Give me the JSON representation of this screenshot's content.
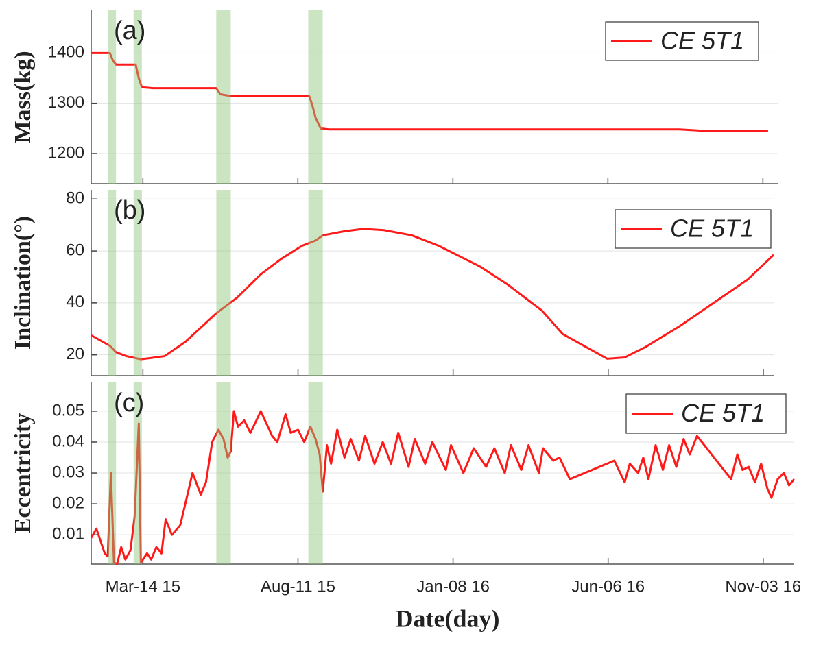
{
  "chart_data": [
    {
      "type": "line",
      "annotation": "(a)",
      "ylabel": "Mass(kg)",
      "legend": "upper right",
      "grid": true,
      "xlim": [
        "2015-01-23",
        "2016-11-18"
      ],
      "xticks": [
        "2015-03-14",
        "2015-08-11",
        "2016-01-08",
        "2016-06-06",
        "2016-11-03"
      ],
      "ylim": [
        1140,
        1485
      ],
      "yticks": [
        1200,
        1300,
        1400
      ],
      "highlights": [
        [
          "2015-02-08",
          "2015-02-16"
        ],
        [
          "2015-03-05",
          "2015-03-13"
        ],
        [
          "2015-05-24",
          "2015-06-07"
        ],
        [
          "2015-08-21",
          "2015-09-04"
        ]
      ],
      "highlight_color": "#8cc57a",
      "x": [
        "2015-01-23",
        "2015-02-10",
        "2015-02-13",
        "2015-02-16",
        "2015-03-07",
        "2015-03-10",
        "2015-03-13",
        "2015-03-24",
        "2015-05-24",
        "2015-05-28",
        "2015-06-08",
        "2015-08-22",
        "2015-08-25",
        "2015-08-28",
        "2015-09-02",
        "2015-09-10",
        "2016-08-14",
        "2016-09-09",
        "2016-11-08"
      ],
      "series": [
        {
          "name": "CE 5T1",
          "color": "#ff1a1a",
          "values": [
            1400,
            1400,
            1385,
            1377,
            1377,
            1350,
            1332,
            1330,
            1330,
            1318,
            1314,
            1314,
            1296,
            1272,
            1250,
            1248,
            1248,
            1245,
            1245
          ]
        }
      ]
    },
    {
      "type": "line",
      "annotation": "(b)",
      "ylabel": "Inclination(°)",
      "legend": "upper right",
      "grid": true,
      "xlim": [
        "2015-01-23",
        "2016-11-13"
      ],
      "xticks": [
        "2015-03-14",
        "2015-08-11",
        "2016-01-08",
        "2016-06-06",
        "2016-11-03"
      ],
      "ylim": [
        12,
        83.5
      ],
      "yticks": [
        20,
        40,
        60,
        80
      ],
      "highlights": [
        [
          "2015-02-08",
          "2015-02-16"
        ],
        [
          "2015-03-05",
          "2015-03-13"
        ],
        [
          "2015-05-24",
          "2015-06-07"
        ],
        [
          "2015-08-21",
          "2015-09-04"
        ]
      ],
      "highlight_color": "#8cc57a",
      "x": [
        "2015-01-23",
        "2015-02-10",
        "2015-02-16",
        "2015-02-26",
        "2015-03-12",
        "2015-03-22",
        "2015-04-04",
        "2015-04-24",
        "2015-05-24",
        "2015-06-13",
        "2015-07-06",
        "2015-07-26",
        "2015-08-15",
        "2015-08-28",
        "2015-09-04",
        "2015-09-24",
        "2015-10-13",
        "2015-11-02",
        "2015-11-29",
        "2015-12-25",
        "2016-02-03",
        "2016-03-01",
        "2016-04-03",
        "2016-04-23",
        "2016-06-05",
        "2016-06-22",
        "2016-07-12",
        "2016-08-14",
        "2016-09-16",
        "2016-10-19",
        "2016-11-13"
      ],
      "series": [
        {
          "name": "CE 5T1",
          "color": "#ff1a1a",
          "values": [
            27.5,
            23.5,
            21,
            19.5,
            18.3,
            18.8,
            19.5,
            25,
            36,
            42,
            51,
            57,
            62,
            64,
            66,
            67.5,
            68.5,
            68,
            66,
            62,
            54,
            47,
            37,
            28,
            18.5,
            19,
            23,
            31,
            40,
            49,
            58.5
          ]
        }
      ]
    },
    {
      "type": "line",
      "annotation": "(c)",
      "ylabel": "Eccentricity",
      "xlabel": "Date(day)",
      "legend": "upper right",
      "grid": true,
      "xlim": [
        "2015-01-23",
        "2016-12-03"
      ],
      "xticks": [
        {
          "value": "2015-03-14",
          "label": "Mar-14 15"
        },
        {
          "value": "2015-08-11",
          "label": "Aug-11 15"
        },
        {
          "value": "2016-01-08",
          "label": "Jan-08 16"
        },
        {
          "value": "2016-06-06",
          "label": "Jun-06 16"
        },
        {
          "value": "2016-11-03",
          "label": "Nov-03 16"
        }
      ],
      "ylim": [
        0.0005,
        0.0593
      ],
      "yticks": [
        0.01,
        0.02,
        0.03,
        0.04,
        0.05
      ],
      "highlights": [
        [
          "2015-02-08",
          "2015-02-16"
        ],
        [
          "2015-03-05",
          "2015-03-13"
        ],
        [
          "2015-05-24",
          "2015-06-07"
        ],
        [
          "2015-08-21",
          "2015-09-04"
        ]
      ],
      "highlight_color": "#8cc57a",
      "x": [
        "2015-01-23",
        "2015-01-28",
        "2015-02-01",
        "2015-02-05",
        "2015-02-08",
        "2015-02-11",
        "2015-02-14",
        "2015-02-17",
        "2015-02-21",
        "2015-02-25",
        "2015-03-02",
        "2015-03-06",
        "2015-03-10",
        "2015-03-12",
        "2015-03-18",
        "2015-03-22",
        "2015-03-27",
        "2015-04-01",
        "2015-04-05",
        "2015-04-11",
        "2015-04-19",
        "2015-04-24",
        "2015-05-01",
        "2015-05-09",
        "2015-05-14",
        "2015-05-20",
        "2015-05-26",
        "2015-05-31",
        "2015-06-04",
        "2015-06-07",
        "2015-06-10",
        "2015-06-14",
        "2015-06-20",
        "2015-06-26",
        "2015-07-06",
        "2015-07-17",
        "2015-07-22",
        "2015-07-30",
        "2015-08-04",
        "2015-08-11",
        "2015-08-17",
        "2015-08-23",
        "2015-08-28",
        "2015-09-01",
        "2015-09-04",
        "2015-09-08",
        "2015-09-12",
        "2015-09-18",
        "2015-09-25",
        "2015-10-01",
        "2015-10-09",
        "2015-10-15",
        "2015-10-24",
        "2015-11-01",
        "2015-11-09",
        "2015-11-16",
        "2015-11-26",
        "2015-12-02",
        "2015-12-12",
        "2015-12-19",
        "2016-01-01",
        "2016-01-06",
        "2016-01-18",
        "2016-01-28",
        "2016-02-09",
        "2016-02-17",
        "2016-02-27",
        "2016-03-04",
        "2016-03-14",
        "2016-03-21",
        "2016-03-31",
        "2016-04-04",
        "2016-04-14",
        "2016-04-20",
        "2016-04-30",
        "2016-06-12",
        "2016-06-22",
        "2016-06-27",
        "2016-07-05",
        "2016-07-10",
        "2016-07-15",
        "2016-07-22",
        "2016-07-29",
        "2016-08-04",
        "2016-08-11",
        "2016-08-18",
        "2016-08-24",
        "2016-08-31",
        "2016-10-03",
        "2016-10-09",
        "2016-10-14",
        "2016-10-20",
        "2016-10-26",
        "2016-11-01",
        "2016-11-07",
        "2016-11-11",
        "2016-11-17",
        "2016-11-23",
        "2016-11-28",
        "2016-12-03"
      ],
      "series": [
        {
          "name": "CE 5T1",
          "color": "#ff1a1a",
          "values": [
            0.009,
            0.012,
            0.008,
            0.004,
            0.003,
            0.03,
            0.001,
            0.0005,
            0.006,
            0.002,
            0.005,
            0.016,
            0.046,
            0.001,
            0.004,
            0.002,
            0.006,
            0.004,
            0.015,
            0.01,
            0.013,
            0.02,
            0.03,
            0.023,
            0.027,
            0.04,
            0.044,
            0.041,
            0.035,
            0.037,
            0.05,
            0.045,
            0.047,
            0.043,
            0.05,
            0.042,
            0.04,
            0.049,
            0.043,
            0.044,
            0.04,
            0.045,
            0.041,
            0.036,
            0.024,
            0.039,
            0.033,
            0.044,
            0.035,
            0.041,
            0.034,
            0.042,
            0.033,
            0.04,
            0.033,
            0.043,
            0.032,
            0.041,
            0.033,
            0.04,
            0.031,
            0.039,
            0.03,
            0.038,
            0.032,
            0.038,
            0.03,
            0.039,
            0.031,
            0.039,
            0.03,
            0.038,
            0.034,
            0.035,
            0.028,
            0.034,
            0.027,
            0.033,
            0.03,
            0.035,
            0.028,
            0.039,
            0.031,
            0.039,
            0.032,
            0.041,
            0.036,
            0.042,
            0.028,
            0.036,
            0.031,
            0.032,
            0.027,
            0.033,
            0.025,
            0.022,
            0.028,
            0.03,
            0.026,
            0.028
          ]
        }
      ]
    }
  ]
}
